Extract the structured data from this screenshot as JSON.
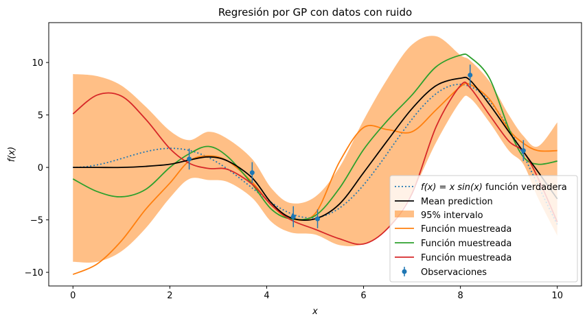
{
  "chart_data": {
    "type": "line",
    "title": "Regresión por GP con datos con ruido",
    "xlabel": "x",
    "ylabel": "f(x)",
    "xlim": [
      -0.5,
      10.5
    ],
    "ylim": [
      -11.3,
      13.8
    ],
    "xticks": [
      0,
      2,
      4,
      6,
      8,
      10
    ],
    "xtick_labels": [
      "0",
      "2",
      "4",
      "6",
      "8",
      "10"
    ],
    "yticks": [
      -10,
      -5,
      0,
      5,
      10
    ],
    "ytick_labels": [
      "−10",
      "−5",
      "0",
      "5",
      "10"
    ],
    "grid": false,
    "legend_position": "lower right",
    "true_function": {
      "label_math": "f(x) = x sin(x)",
      "label_text": "función verdadera",
      "color": "#1f77b4",
      "style": "dotted"
    },
    "mean": {
      "label": "Mean prediction",
      "color": "#000000",
      "x": [
        0,
        0.5,
        1,
        1.5,
        2,
        2.4,
        2.8,
        3.2,
        3.7,
        4.1,
        4.5,
        5.0,
        5.5,
        6.0,
        6.5,
        7.0,
        7.5,
        8.0,
        8.2,
        8.6,
        9.0,
        9.3,
        9.6,
        10
      ],
      "y": [
        0,
        0,
        0,
        0.1,
        0.3,
        0.7,
        1.0,
        0.6,
        -1.0,
        -3.4,
        -4.8,
        -4.9,
        -3.5,
        -0.5,
        2.6,
        5.6,
        7.8,
        8.5,
        8.3,
        6.0,
        3.4,
        1.5,
        -0.4,
        -3.0
      ]
    },
    "interval": {
      "label": "95% intervalo",
      "color": "#ff7f0e",
      "opacity": 0.5,
      "x": [
        0,
        0.5,
        1,
        1.5,
        2,
        2.4,
        2.8,
        3.2,
        3.7,
        4.1,
        4.5,
        5.0,
        5.5,
        6.0,
        6.5,
        7.0,
        7.5,
        8.0,
        8.2,
        8.6,
        9.0,
        9.3,
        9.6,
        10
      ],
      "upper": [
        8.9,
        8.7,
        7.8,
        5.8,
        3.5,
        2.6,
        3.4,
        2.7,
        0.8,
        -2.0,
        -3.4,
        -2.8,
        0.0,
        4.5,
        8.5,
        11.7,
        12.5,
        10.7,
        10.2,
        8.2,
        5.0,
        3.0,
        2.0,
        4.3
      ],
      "lower": [
        -9.0,
        -9.0,
        -8.0,
        -5.8,
        -2.9,
        -1.1,
        -1.2,
        -1.4,
        -2.9,
        -5.2,
        -6.2,
        -6.4,
        -7.4,
        -7.3,
        -5.8,
        -2.4,
        2.4,
        6.3,
        6.6,
        4.3,
        1.6,
        0.3,
        -2.9,
        -6.5
      ]
    },
    "samples": [
      {
        "label": "Función muestreada",
        "color": "#ff7f0e",
        "x": [
          0,
          0.5,
          1,
          1.5,
          2,
          2.4,
          2.8,
          3.2,
          3.7,
          4.1,
          4.5,
          5.0,
          5.5,
          6.0,
          6.5,
          7.0,
          7.5,
          8.0,
          8.2,
          8.6,
          9.0,
          9.3,
          9.6,
          10
        ],
        "y": [
          -10.2,
          -9.2,
          -7.0,
          -4.0,
          -1.5,
          0.6,
          1.1,
          0.6,
          -1.4,
          -3.6,
          -4.9,
          -4.4,
          0.5,
          3.8,
          3.6,
          3.4,
          5.5,
          7.7,
          7.9,
          6.5,
          3.6,
          2.3,
          1.6,
          1.6
        ]
      },
      {
        "label": "Función muestreada",
        "color": "#2ca02c",
        "x": [
          0,
          0.5,
          1,
          1.5,
          2,
          2.4,
          2.8,
          3.2,
          3.7,
          4.1,
          4.5,
          5.0,
          5.5,
          6.0,
          6.5,
          7.0,
          7.5,
          8.0,
          8.2,
          8.6,
          9.0,
          9.3,
          9.6,
          10
        ],
        "y": [
          -1.1,
          -2.3,
          -2.8,
          -2.1,
          0.0,
          1.3,
          2.0,
          1.0,
          -1.6,
          -4.0,
          -4.9,
          -4.6,
          -2.0,
          1.7,
          4.5,
          6.9,
          9.6,
          10.7,
          10.5,
          8.5,
          3.7,
          1.0,
          0.3,
          0.6
        ]
      },
      {
        "label": "Función muestreada",
        "color": "#d62728",
        "x": [
          0,
          0.5,
          1,
          1.5,
          2,
          2.4,
          2.8,
          3.2,
          3.7,
          4.1,
          4.5,
          5.0,
          5.5,
          6.0,
          6.5,
          7.0,
          7.5,
          8.0,
          8.2,
          8.6,
          9.0,
          9.3,
          9.6,
          10
        ],
        "y": [
          5.1,
          6.9,
          6.8,
          4.6,
          1.8,
          0.4,
          -0.1,
          -0.2,
          -1.6,
          -3.6,
          -5.0,
          -5.9,
          -6.8,
          -7.3,
          -5.8,
          -2.5,
          3.9,
          7.8,
          7.6,
          5.0,
          2.5,
          1.5,
          -1.0,
          -5.2
        ]
      }
    ],
    "observations": {
      "label": "Observaciones",
      "color": "#1f77b4",
      "x": [
        2.4,
        3.7,
        4.55,
        5.05,
        8.2,
        9.3
      ],
      "y": [
        0.8,
        -0.5,
        -4.7,
        -4.9,
        8.8,
        1.6
      ],
      "error": [
        1.0,
        1.0,
        1.0,
        0.9,
        1.0,
        1.0
      ]
    }
  }
}
